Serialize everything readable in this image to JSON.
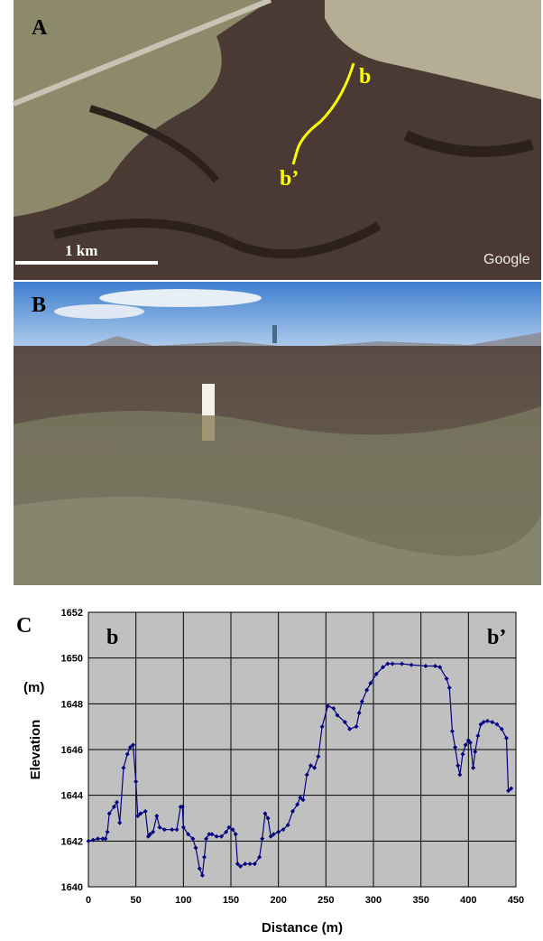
{
  "panels": {
    "a": {
      "label": "A",
      "point_start": "b",
      "point_end": "b’",
      "scale": "1 km",
      "attribution": "Google"
    },
    "b": {
      "label": "B"
    },
    "c": {
      "label": "C"
    }
  },
  "chart_data": {
    "type": "line",
    "x_label": "Distance (m)",
    "y_label": "Elevation",
    "y_unit": "(m)",
    "annotations": [
      "b",
      "b’"
    ],
    "color": "#000080",
    "grid": true,
    "xlim": [
      0,
      450
    ],
    "xticks": [
      0,
      50,
      100,
      150,
      200,
      250,
      300,
      350,
      400,
      450
    ],
    "ylim": [
      1640,
      1652
    ],
    "yticks": [
      1640,
      1642,
      1644,
      1646,
      1648,
      1650,
      1652
    ],
    "x": [
      0,
      5,
      10,
      15,
      18,
      20,
      22,
      27,
      30,
      33,
      37,
      41,
      44,
      47,
      50,
      52,
      55,
      60,
      63,
      65,
      68,
      72,
      75,
      80,
      88,
      93,
      97,
      99,
      100,
      105,
      110,
      113,
      117,
      120,
      122,
      124,
      127,
      130,
      135,
      140,
      145,
      148,
      152,
      155,
      157,
      160,
      165,
      170,
      175,
      180,
      183,
      186,
      189,
      192,
      195,
      200,
      205,
      210,
      215,
      220,
      223,
      226,
      230,
      234,
      238,
      242,
      246,
      252,
      258,
      262,
      270,
      275,
      282,
      285,
      288,
      293,
      297,
      303,
      310,
      315,
      320,
      330,
      340,
      355,
      365,
      370,
      377,
      380,
      383,
      386,
      389,
      391,
      394,
      397,
      400,
      402,
      405,
      407,
      410,
      413,
      416,
      420,
      425,
      430,
      435,
      440,
      442,
      445
    ],
    "values": [
      1642.0,
      1642.05,
      1642.1,
      1642.1,
      1642.1,
      1642.4,
      1643.2,
      1643.5,
      1643.7,
      1642.8,
      1645.2,
      1645.8,
      1646.1,
      1646.2,
      1644.6,
      1643.1,
      1643.2,
      1643.3,
      1642.2,
      1642.3,
      1642.4,
      1643.1,
      1642.6,
      1642.5,
      1642.5,
      1642.5,
      1643.5,
      1643.5,
      1642.6,
      1642.3,
      1642.1,
      1641.7,
      1640.8,
      1640.5,
      1641.3,
      1642.1,
      1642.3,
      1642.3,
      1642.2,
      1642.2,
      1642.4,
      1642.6,
      1642.5,
      1642.3,
      1641.0,
      1640.9,
      1641.0,
      1641.0,
      1641.0,
      1641.3,
      1642.1,
      1643.2,
      1643.0,
      1642.2,
      1642.3,
      1642.4,
      1642.5,
      1642.7,
      1643.3,
      1643.6,
      1643.9,
      1643.8,
      1644.9,
      1645.3,
      1645.2,
      1645.7,
      1647.0,
      1647.9,
      1647.8,
      1647.5,
      1647.2,
      1646.9,
      1647.0,
      1647.6,
      1648.1,
      1648.6,
      1648.9,
      1649.3,
      1649.6,
      1649.75,
      1649.75,
      1649.75,
      1649.7,
      1649.65,
      1649.65,
      1649.6,
      1649.1,
      1648.7,
      1646.8,
      1646.1,
      1645.3,
      1644.9,
      1645.8,
      1646.2,
      1646.4,
      1646.3,
      1645.2,
      1645.9,
      1646.6,
      1647.1,
      1647.2,
      1647.25,
      1647.2,
      1647.1,
      1646.9,
      1646.5,
      1644.2,
      1644.3
    ]
  }
}
